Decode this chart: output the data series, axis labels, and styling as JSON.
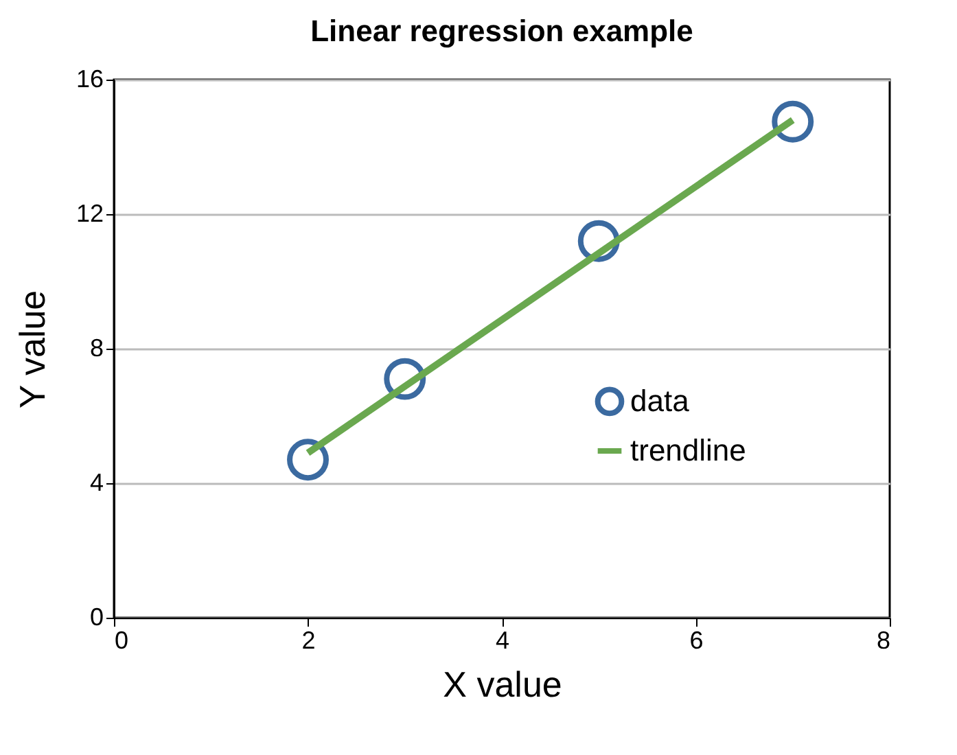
{
  "chart_data": {
    "type": "scatter",
    "title": "Linear regression example",
    "xlabel": "X value",
    "ylabel": "Y value",
    "x": [
      2,
      3,
      5,
      7
    ],
    "series": [
      {
        "name": "data",
        "type": "scatter",
        "color": "#3b6aa0",
        "values": [
          4.7,
          7.1,
          11.2,
          14.75
        ],
        "marker": "circle"
      },
      {
        "name": "trendline",
        "type": "line",
        "color": "#6aa84f",
        "x": [
          2,
          7
        ],
        "values": [
          4.9,
          14.8
        ],
        "line_style": "solid"
      }
    ],
    "xlim": [
      0,
      8
    ],
    "xticks": [
      0,
      2,
      4,
      6,
      8
    ],
    "ylim": [
      0,
      16
    ],
    "yticks": [
      0,
      4,
      8,
      12,
      16
    ],
    "grid": "y",
    "legend": "right"
  }
}
